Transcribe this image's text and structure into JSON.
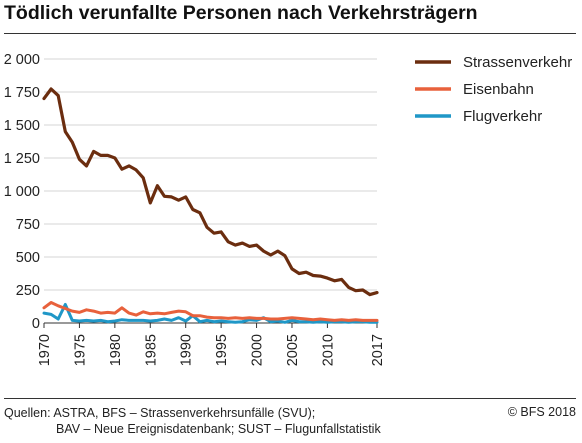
{
  "title": "Tödlich verunfallte Personen nach Verkehrsträgern",
  "source": {
    "line1": "Quellen: ASTRA, BFS – Strassenverkehrsunfälle (SVU);",
    "line2": "BAV – Neue Ereignisdatenbank; SUST – Flugunfallstatistik"
  },
  "copyright": "© BFS 2018",
  "chart_data": {
    "type": "line",
    "title": "Tödlich verunfallte Personen nach Verkehrsträgern",
    "xlabel": "",
    "ylabel": "",
    "x": [
      1970,
      1971,
      1972,
      1973,
      1974,
      1975,
      1976,
      1977,
      1978,
      1979,
      1980,
      1981,
      1982,
      1983,
      1984,
      1985,
      1986,
      1987,
      1988,
      1989,
      1990,
      1991,
      1992,
      1993,
      1994,
      1995,
      1996,
      1997,
      1998,
      1999,
      2000,
      2001,
      2002,
      2003,
      2004,
      2005,
      2006,
      2007,
      2008,
      2009,
      2010,
      2011,
      2012,
      2013,
      2014,
      2015,
      2016,
      2017
    ],
    "xlim": [
      1970,
      2017
    ],
    "ylim": [
      0,
      2000
    ],
    "x_ticks": [
      1970,
      1975,
      1980,
      1985,
      1990,
      1995,
      2000,
      2005,
      2010,
      2017
    ],
    "y_ticks": [
      0,
      250,
      500,
      750,
      1000,
      1250,
      1500,
      1750,
      2000
    ],
    "x_tick_labels": [
      "1970",
      "1975",
      "1980",
      "1985",
      "1990",
      "1995",
      "2000",
      "2005",
      "2010",
      "2017"
    ],
    "y_tick_labels": [
      "0",
      "250",
      "500",
      "750",
      "1 000",
      "1 250",
      "1 500",
      "1 750",
      "2 000"
    ],
    "grid": "horizontal",
    "legend_position": "right",
    "series": [
      {
        "name": "Strassenverkehr",
        "color": "#6b2d0f",
        "values": [
          1700,
          1773,
          1723,
          1450,
          1370,
          1240,
          1190,
          1300,
          1270,
          1270,
          1250,
          1165,
          1190,
          1160,
          1100,
          910,
          1040,
          960,
          955,
          930,
          955,
          860,
          835,
          725,
          680,
          690,
          615,
          590,
          605,
          580,
          590,
          545,
          515,
          545,
          510,
          410,
          375,
          385,
          360,
          355,
          340,
          320,
          330,
          270,
          245,
          250,
          215,
          230
        ]
      },
      {
        "name": "Eisenbahn",
        "color": "#e8613c",
        "values": [
          115,
          155,
          130,
          110,
          90,
          80,
          100,
          90,
          75,
          80,
          75,
          115,
          75,
          60,
          85,
          70,
          75,
          70,
          80,
          90,
          85,
          55,
          55,
          45,
          40,
          40,
          35,
          40,
          35,
          40,
          35,
          35,
          30,
          30,
          35,
          40,
          35,
          30,
          25,
          30,
          25,
          20,
          25,
          20,
          25,
          20,
          20,
          20
        ]
      },
      {
        "name": "Flugverkehr",
        "color": "#1f97c7",
        "values": [
          75,
          65,
          30,
          140,
          20,
          15,
          20,
          15,
          20,
          10,
          15,
          25,
          20,
          20,
          20,
          15,
          20,
          30,
          20,
          40,
          15,
          55,
          10,
          20,
          10,
          15,
          10,
          5,
          10,
          25,
          20,
          40,
          10,
          15,
          5,
          20,
          10,
          10,
          5,
          10,
          5,
          10,
          10,
          5,
          10,
          10,
          5,
          5
        ]
      }
    ]
  }
}
